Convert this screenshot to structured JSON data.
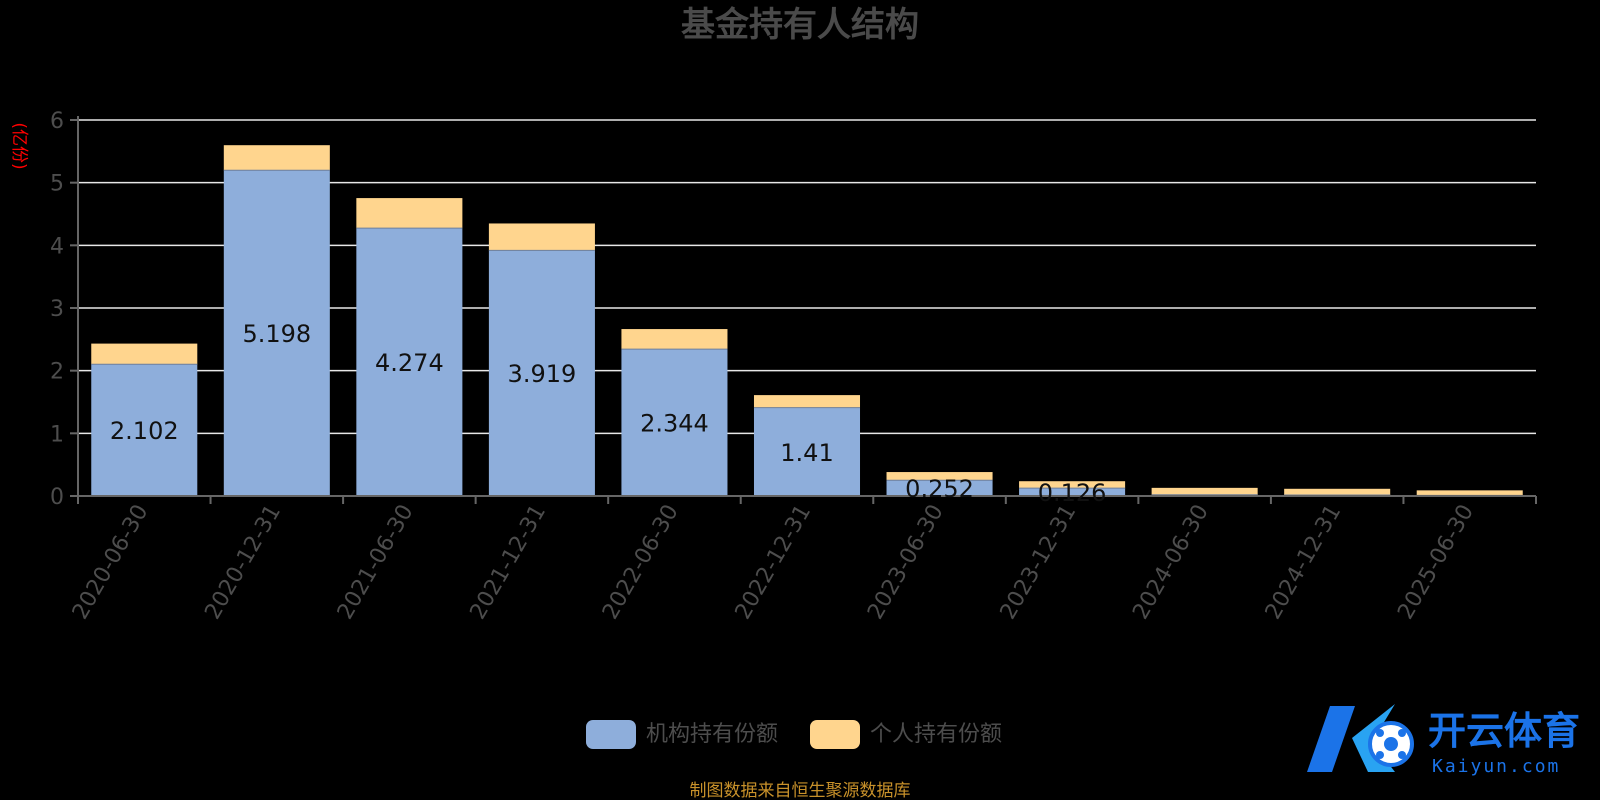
{
  "chart_data": {
    "type": "bar",
    "stacked": true,
    "title": "基金持有人结构",
    "unit_label": "(亿份)",
    "categories": [
      "2020-06-30",
      "2020-12-31",
      "2021-06-30",
      "2021-12-31",
      "2022-06-30",
      "2022-12-31",
      "2023-06-30",
      "2023-12-31",
      "2024-06-30",
      "2024-12-31",
      "2025-06-30"
    ],
    "ylim": [
      0,
      6
    ],
    "yticks": [
      0,
      1,
      2,
      3,
      4,
      5,
      6
    ],
    "grid": true,
    "legend_position": "bottom-center",
    "series": [
      {
        "name": "机构持有份额",
        "color": "#8eaedb",
        "values": [
          2.102,
          5.198,
          4.274,
          3.919,
          2.344,
          1.41,
          0.252,
          0.126,
          0.02,
          0.015,
          0.01
        ],
        "labels": [
          "2.102",
          "5.198",
          "4.274",
          "3.919",
          "2.344",
          "1.41",
          "0.252",
          "0.126",
          "",
          "",
          ""
        ]
      },
      {
        "name": "个人持有份额",
        "color": "#ffd58e",
        "values": [
          0.33,
          0.4,
          0.48,
          0.43,
          0.32,
          0.2,
          0.13,
          0.11,
          0.11,
          0.1,
          0.08
        ]
      }
    ]
  },
  "footer": {
    "source": "制图数据来自恒生聚源数据库"
  },
  "watermark": {
    "name": "开云体育",
    "domain": "Kaiyun.com"
  }
}
